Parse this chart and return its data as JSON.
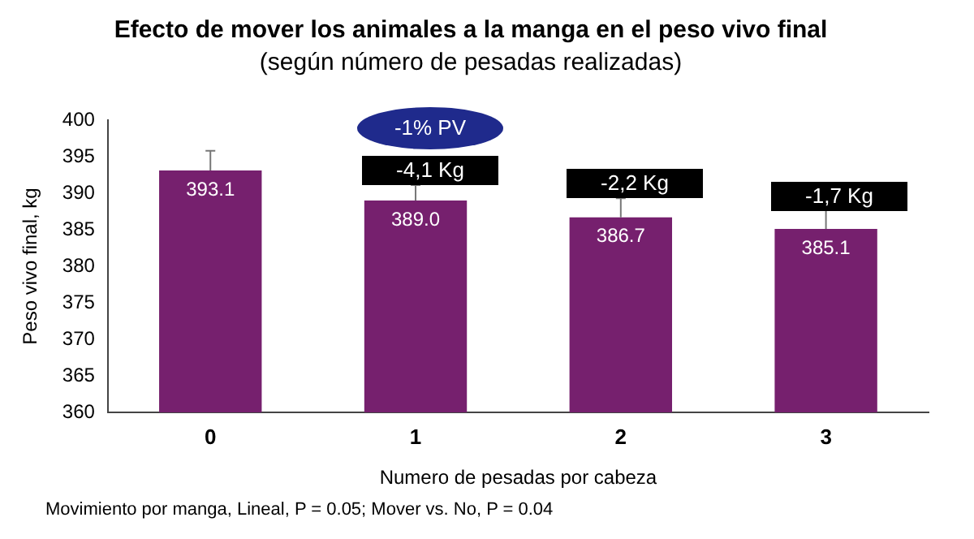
{
  "chart_data": {
    "type": "bar",
    "title": "Efecto de mover los animales a la manga en el peso vivo final",
    "subtitle": "(según número de pesadas realizadas)",
    "xlabel": "Numero de pesadas por cabeza",
    "ylabel": "Peso vivo final, kg",
    "categories": [
      "0",
      "1",
      "2",
      "3"
    ],
    "values": [
      393.1,
      389.0,
      386.7,
      385.1
    ],
    "errors": [
      [
        393.1,
        395.8
      ],
      [
        389.0,
        391.1
      ],
      [
        386.7,
        389.3
      ],
      [
        385.1,
        388.7
      ]
    ],
    "value_labels": [
      "393.1",
      "389.0",
      "386.7",
      "385.1"
    ],
    "color": "#76206e",
    "grid": false,
    "legend": false,
    "ylim": [
      360,
      400
    ],
    "yticks": [
      360,
      365,
      370,
      375,
      380,
      385,
      390,
      395,
      400
    ],
    "annotations": [
      "-1% PV",
      "-4,1 Kg",
      "-2,2 Kg",
      "-1,7 Kg",
      "Movimiento por manga, Lineal, P = 0.05; Mover vs. No, P = 0.04"
    ]
  }
}
